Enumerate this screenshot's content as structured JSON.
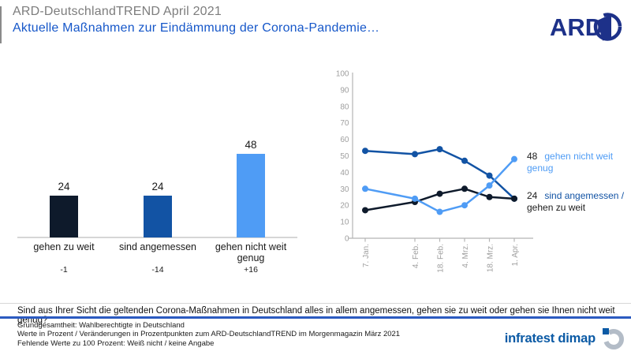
{
  "header": {
    "pretitle": "ARD-DeutschlandTREND April 2021",
    "title": "Aktuelle Maßnahmen zur Eindämmung der Corona-Pandemie…",
    "logo": "ARD"
  },
  "colors": {
    "title_blue": "#1657c9",
    "series_dark": "#0e1a2b",
    "series_mid_blue": "#1253a4",
    "series_light_blue": "#4f9cf5",
    "axis_gray": "#b5b5b5",
    "tick_label_gray": "#9e9e9e",
    "rule_blue": "#2b5ac0",
    "brand_blue": "#0b5aa5",
    "ard_navy": "#1d3189"
  },
  "chart_data": [
    {
      "type": "bar",
      "categories": [
        "gehen zu weit",
        "sind angemessen",
        "gehen nicht weit genug"
      ],
      "label_lines": [
        [
          "gehen zu weit"
        ],
        [
          "sind angemessen"
        ],
        [
          "gehen nicht weit",
          "genug"
        ]
      ],
      "values": [
        24,
        24,
        48
      ],
      "changes": [
        "-1",
        "-14",
        "+16"
      ],
      "colors": [
        "#0e1a2b",
        "#1253a4",
        "#4f9cf5"
      ],
      "ylim": [
        0,
        100
      ],
      "title": "",
      "xlabel": "",
      "ylabel": ""
    },
    {
      "type": "line",
      "x": [
        "7. Jan.",
        "4. Feb.",
        "18. Feb.",
        "4. Mrz.",
        "18. Mrz.",
        "1. Apr."
      ],
      "x_days": [
        0,
        28,
        42,
        56,
        70,
        84
      ],
      "series": [
        {
          "name": "sind angemessen",
          "values": [
            53,
            51,
            54,
            47,
            38,
            24
          ],
          "color": "#1253a4"
        },
        {
          "name": "gehen zu weit",
          "values": [
            17,
            22,
            27,
            30,
            25,
            24
          ],
          "color": "#0e1a2b"
        },
        {
          "name": "gehen nicht weit genug",
          "values": [
            30,
            24,
            16,
            20,
            32,
            48
          ],
          "color": "#4f9cf5"
        }
      ],
      "ylim": [
        0,
        100
      ],
      "ytick_step": 10,
      "grid": false,
      "legend_position": "right",
      "title": "",
      "xlabel": "",
      "ylabel": ""
    }
  ],
  "line_labels": {
    "top": {
      "value": "48",
      "text": "gehen nicht weit",
      "text2": "genug"
    },
    "bottom": {
      "value": "24",
      "text": "sind angemessen /",
      "text2": "gehen zu weit"
    }
  },
  "question": "Sind aus Ihrer Sicht die geltenden Corona-Maßnahmen in Deutschland alles in allem angemessen, gehen sie zu weit oder gehen sie Ihnen nicht weit genug?",
  "footer": {
    "lines": [
      "Grundgesamtheit: Wahlberechtigte in Deutschland",
      "Werte in Prozent / Veränderungen in Prozentpunkten zum ARD-DeutschlandTREND im Morgenmagazin März 2021",
      "Fehlende Werte zu 100 Prozent: Weiß nicht / keine Angabe"
    ],
    "brand": "infratest dimap"
  }
}
